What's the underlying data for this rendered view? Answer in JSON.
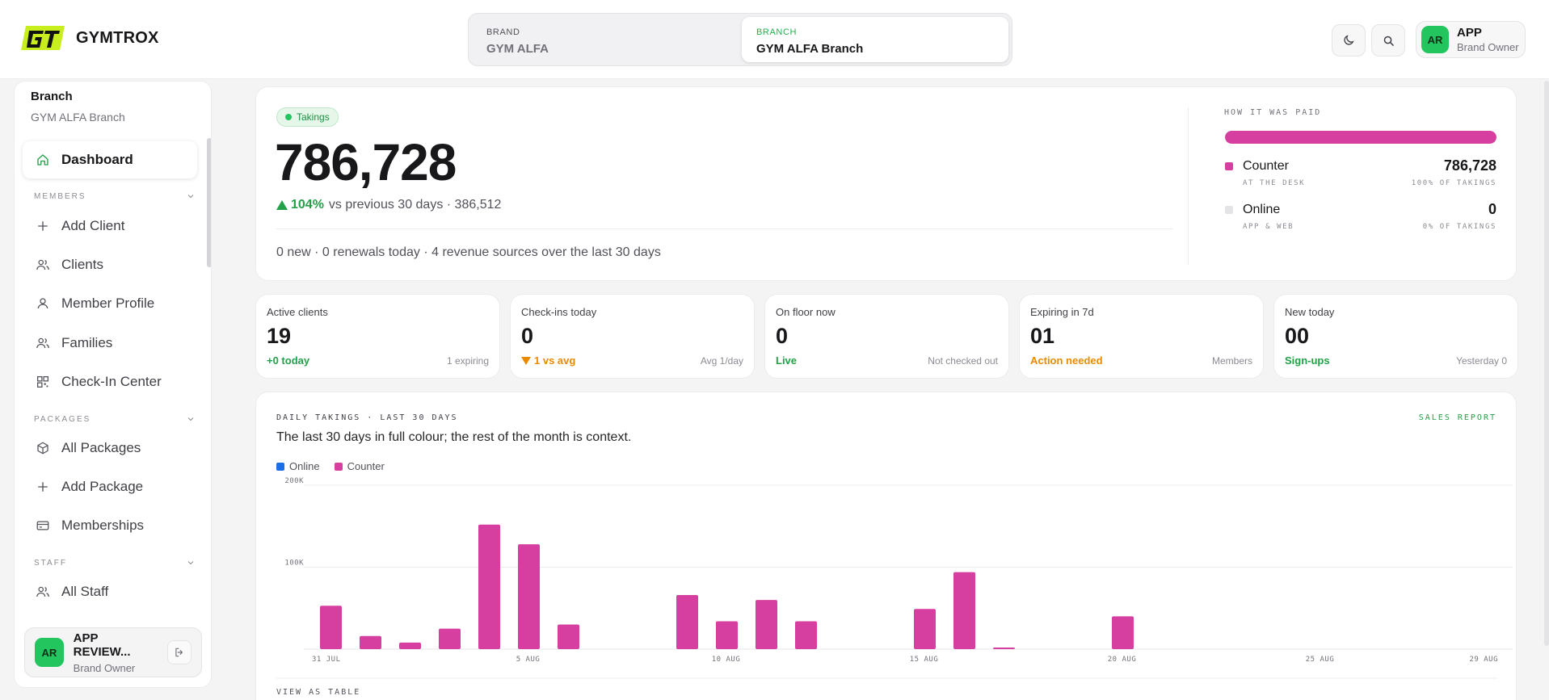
{
  "app": {
    "name": "GYMTROX"
  },
  "switcher": {
    "brand": {
      "caption": "BRAND",
      "value": "GYM ALFA"
    },
    "branch": {
      "caption": "BRANCH",
      "value": "GYM ALFA Branch"
    }
  },
  "header_actions": {
    "theme_icon": "moon-icon",
    "search_icon": "search-icon"
  },
  "user": {
    "initials": "AR",
    "name": "APP",
    "role": "Brand Owner"
  },
  "sidebar": {
    "context_title": "Branch",
    "context_value": "GYM ALFA Branch",
    "dashboard": {
      "label": "Dashboard",
      "icon": "home-icon"
    },
    "sections": {
      "members": "MEMBERS",
      "packages": "PACKAGES",
      "staff": "STAFF"
    },
    "items": {
      "add_client": {
        "label": "Add Client",
        "icon": "plus-icon"
      },
      "clients": {
        "label": "Clients",
        "icon": "users-icon"
      },
      "member_profile": {
        "label": "Member Profile",
        "icon": "user-icon"
      },
      "families": {
        "label": "Families",
        "icon": "users-icon"
      },
      "check_in": {
        "label": "Check-In Center",
        "icon": "qr-icon"
      },
      "all_packages": {
        "label": "All Packages",
        "icon": "box-icon"
      },
      "add_package": {
        "label": "Add Package",
        "icon": "plus-icon"
      },
      "memberships": {
        "label": "Memberships",
        "icon": "card-icon"
      },
      "all_staff": {
        "label": "All Staff",
        "icon": "users-icon"
      }
    },
    "footer_user": {
      "initials": "AR",
      "name": "APP REVIEW...",
      "role": "Brand Owner"
    }
  },
  "takings": {
    "pill": "Takings",
    "value": "786,728",
    "delta": "104%",
    "delta_context": "vs previous 30 days · 386,512",
    "footer": "0 new · 0 renewals today · 4 revenue sources over the last 30 days",
    "paid_caption": "HOW IT WAS PAID",
    "counter_share": 1.0,
    "methods": [
      {
        "name": "Counter",
        "sub": "AT THE DESK",
        "value": "786,728",
        "share": "100% OF TAKINGS",
        "color": "#d63fa0"
      },
      {
        "name": "Online",
        "sub": "APP & WEB",
        "value": "0",
        "share": "0% OF TAKINGS",
        "color": "#e4e4e7"
      }
    ]
  },
  "stats": [
    {
      "label": "Active clients",
      "value": "19",
      "left": "+0 today",
      "right": "1 expiring",
      "tone": "green"
    },
    {
      "label": "Check-ins today",
      "value": "0",
      "left": "1 vs avg",
      "right": "Avg 1/day",
      "tone": "orange-down"
    },
    {
      "label": "On floor now",
      "value": "0",
      "left": "Live",
      "right": "Not checked out",
      "tone": "green"
    },
    {
      "label": "Expiring in 7d",
      "value": "01",
      "left": "Action needed",
      "right": "Members",
      "tone": "orange"
    },
    {
      "label": "New today",
      "value": "00",
      "left": "Sign-ups",
      "right": "Yesterday 0",
      "tone": "green"
    }
  ],
  "chart_section": {
    "caption": "DAILY TAKINGS · LAST 30 DAYS",
    "link": "SALES REPORT",
    "subtitle": "The last 30 days in full colour; the rest of the month is context.",
    "table_link": "VIEW AS TABLE"
  },
  "chart_data": {
    "type": "bar",
    "title": "DAILY TAKINGS · LAST 30 DAYS",
    "xlabel": "",
    "ylabel": "",
    "ylim": [
      0,
      200000
    ],
    "y_ticks": [
      {
        "value": 200000,
        "label": "200K"
      },
      {
        "value": 100000,
        "label": "100K"
      }
    ],
    "x_ticks": [
      "31 JUL",
      "5 AUG",
      "10 AUG",
      "15 AUG",
      "20 AUG",
      "25 AUG",
      "29 AUG"
    ],
    "categories": [
      "31 Jul",
      "1 Aug",
      "2 Aug",
      "3 Aug",
      "4 Aug",
      "5 Aug",
      "6 Aug",
      "7 Aug",
      "8 Aug",
      "9 Aug",
      "10 Aug",
      "11 Aug",
      "12 Aug",
      "13 Aug",
      "14 Aug",
      "15 Aug",
      "16 Aug",
      "17 Aug",
      "18 Aug",
      "19 Aug",
      "20 Aug",
      "21 Aug",
      "22 Aug",
      "23 Aug",
      "24 Aug",
      "25 Aug",
      "26 Aug",
      "27 Aug",
      "28 Aug",
      "29 Aug"
    ],
    "legend_position": "top-left",
    "grid": true,
    "series": [
      {
        "name": "Online",
        "color": "#1d6fe8",
        "values": [
          0,
          0,
          0,
          0,
          0,
          0,
          0,
          0,
          0,
          0,
          0,
          0,
          0,
          0,
          0,
          0,
          0,
          0,
          0,
          0,
          0,
          0,
          0,
          0,
          0,
          0,
          0,
          0,
          0,
          0
        ]
      },
      {
        "name": "Counter",
        "color": "#d63fa0",
        "values": [
          53000,
          16000,
          8000,
          25000,
          152000,
          128000,
          30000,
          0,
          0,
          66000,
          34000,
          60000,
          34000,
          0,
          0,
          49000,
          94000,
          2000,
          0,
          0,
          40000,
          0,
          0,
          0,
          0,
          0,
          0,
          0,
          0,
          0
        ]
      }
    ]
  }
}
